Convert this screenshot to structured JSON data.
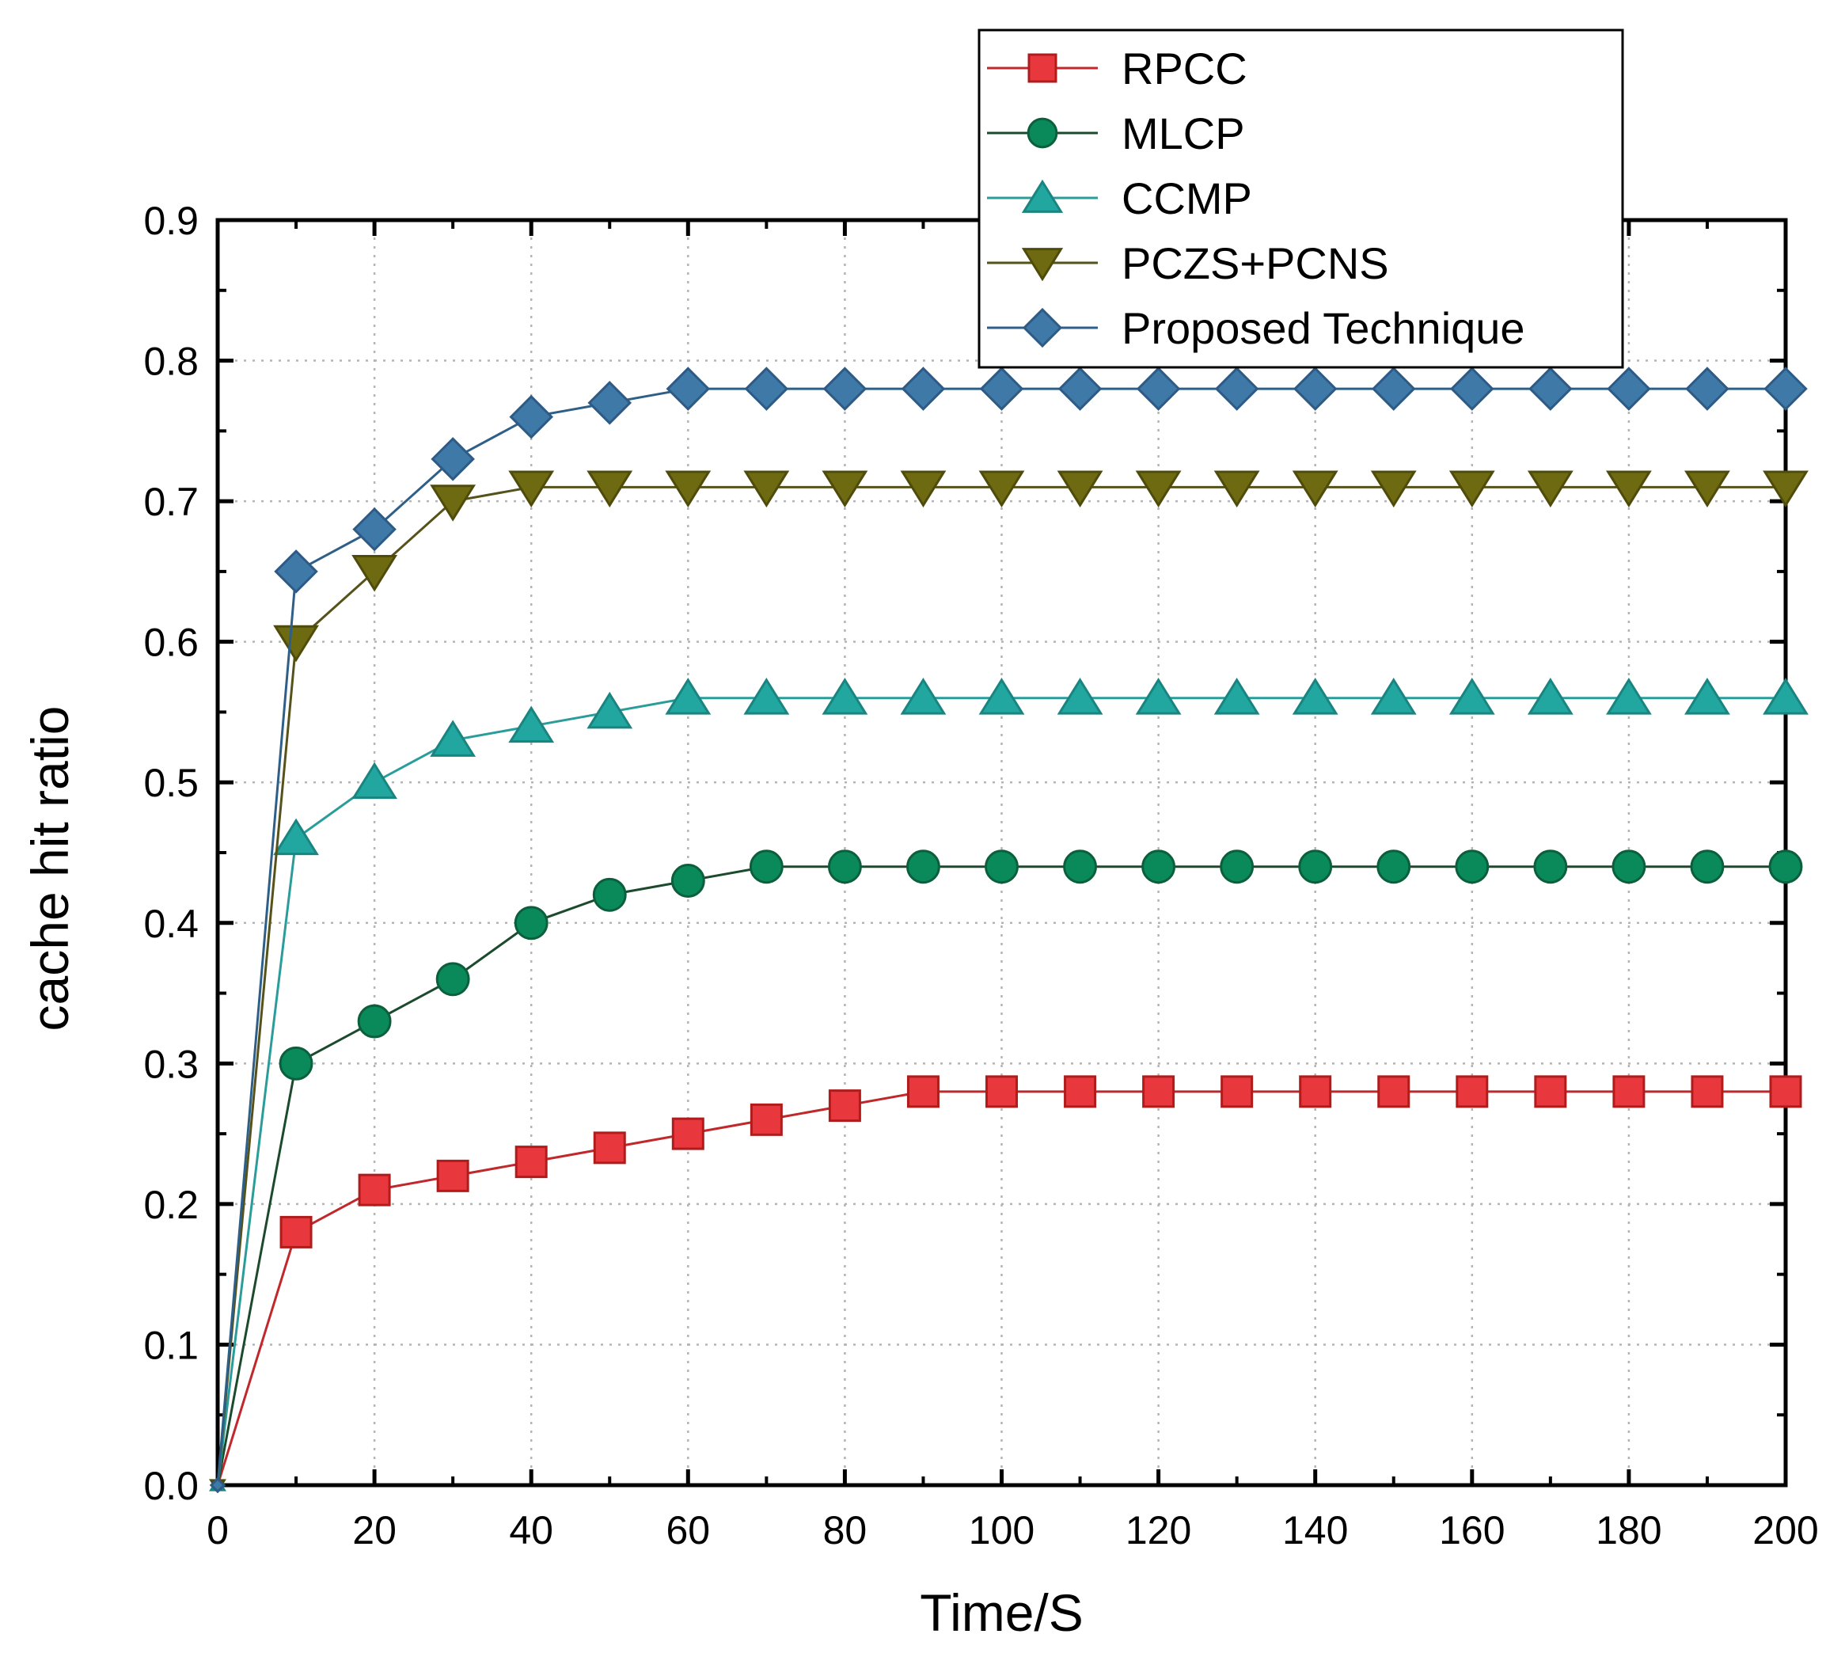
{
  "chart_data": {
    "type": "line",
    "title": "",
    "xlabel": "Time/S",
    "ylabel": "cache hit ratio",
    "xlim": [
      0,
      200
    ],
    "ylim": [
      0,
      0.9
    ],
    "xticks": [
      0,
      20,
      40,
      60,
      80,
      100,
      120,
      140,
      160,
      180,
      200
    ],
    "xtick_labels": [
      "0",
      "20",
      "40",
      "60",
      "80",
      "100",
      "120",
      "140",
      "160",
      "180",
      "200"
    ],
    "yticks": [
      0,
      0.1,
      0.2,
      0.3,
      0.4,
      0.5,
      0.6,
      0.7,
      0.8,
      0.9
    ],
    "ytick_labels": [
      "0.0",
      "0.1",
      "0.2",
      "0.3",
      "0.4",
      "0.5",
      "0.6",
      "0.7",
      "0.8",
      "0.9"
    ],
    "grid": true,
    "legend_position": "top-right",
    "x": [
      0,
      10,
      20,
      30,
      40,
      50,
      60,
      70,
      80,
      90,
      100,
      110,
      120,
      130,
      140,
      150,
      160,
      170,
      180,
      190,
      200
    ],
    "series": [
      {
        "name": "RPCC",
        "marker": "square",
        "color": "#e8383d",
        "edge": "#b01c1c",
        "line": "#c0282b",
        "values": [
          0,
          0.18,
          0.21,
          0.22,
          0.23,
          0.24,
          0.25,
          0.26,
          0.27,
          0.28,
          0.28,
          0.28,
          0.28,
          0.28,
          0.28,
          0.28,
          0.28,
          0.28,
          0.28,
          0.28,
          0.28
        ]
      },
      {
        "name": "MLCP",
        "marker": "circle",
        "color": "#0a8a5a",
        "edge": "#0b5f3c",
        "line": "#1c4a2c",
        "values": [
          0,
          0.3,
          0.33,
          0.36,
          0.4,
          0.42,
          0.43,
          0.44,
          0.44,
          0.44,
          0.44,
          0.44,
          0.44,
          0.44,
          0.44,
          0.44,
          0.44,
          0.44,
          0.44,
          0.44,
          0.44
        ]
      },
      {
        "name": "CCMP",
        "marker": "triangle-up",
        "color": "#21a6a0",
        "edge": "#1a8580",
        "line": "#2a9d9b",
        "values": [
          0,
          0.46,
          0.5,
          0.53,
          0.54,
          0.55,
          0.56,
          0.56,
          0.56,
          0.56,
          0.56,
          0.56,
          0.56,
          0.56,
          0.56,
          0.56,
          0.56,
          0.56,
          0.56,
          0.56,
          0.56
        ]
      },
      {
        "name": "PCZS+PCNS",
        "marker": "triangle-down",
        "color": "#6e6a12",
        "edge": "#4f4c0b",
        "line": "#55521a",
        "values": [
          0,
          0.6,
          0.65,
          0.7,
          0.71,
          0.71,
          0.71,
          0.71,
          0.71,
          0.71,
          0.71,
          0.71,
          0.71,
          0.71,
          0.71,
          0.71,
          0.71,
          0.71,
          0.71,
          0.71,
          0.71
        ]
      },
      {
        "name": "Proposed Technique",
        "marker": "diamond",
        "color": "#3f79a8",
        "edge": "#2d5b85",
        "line": "#2e5f88",
        "values": [
          0,
          0.65,
          0.68,
          0.73,
          0.76,
          0.77,
          0.78,
          0.78,
          0.78,
          0.78,
          0.78,
          0.78,
          0.78,
          0.78,
          0.78,
          0.78,
          0.78,
          0.78,
          0.78,
          0.78,
          0.78
        ]
      }
    ]
  }
}
